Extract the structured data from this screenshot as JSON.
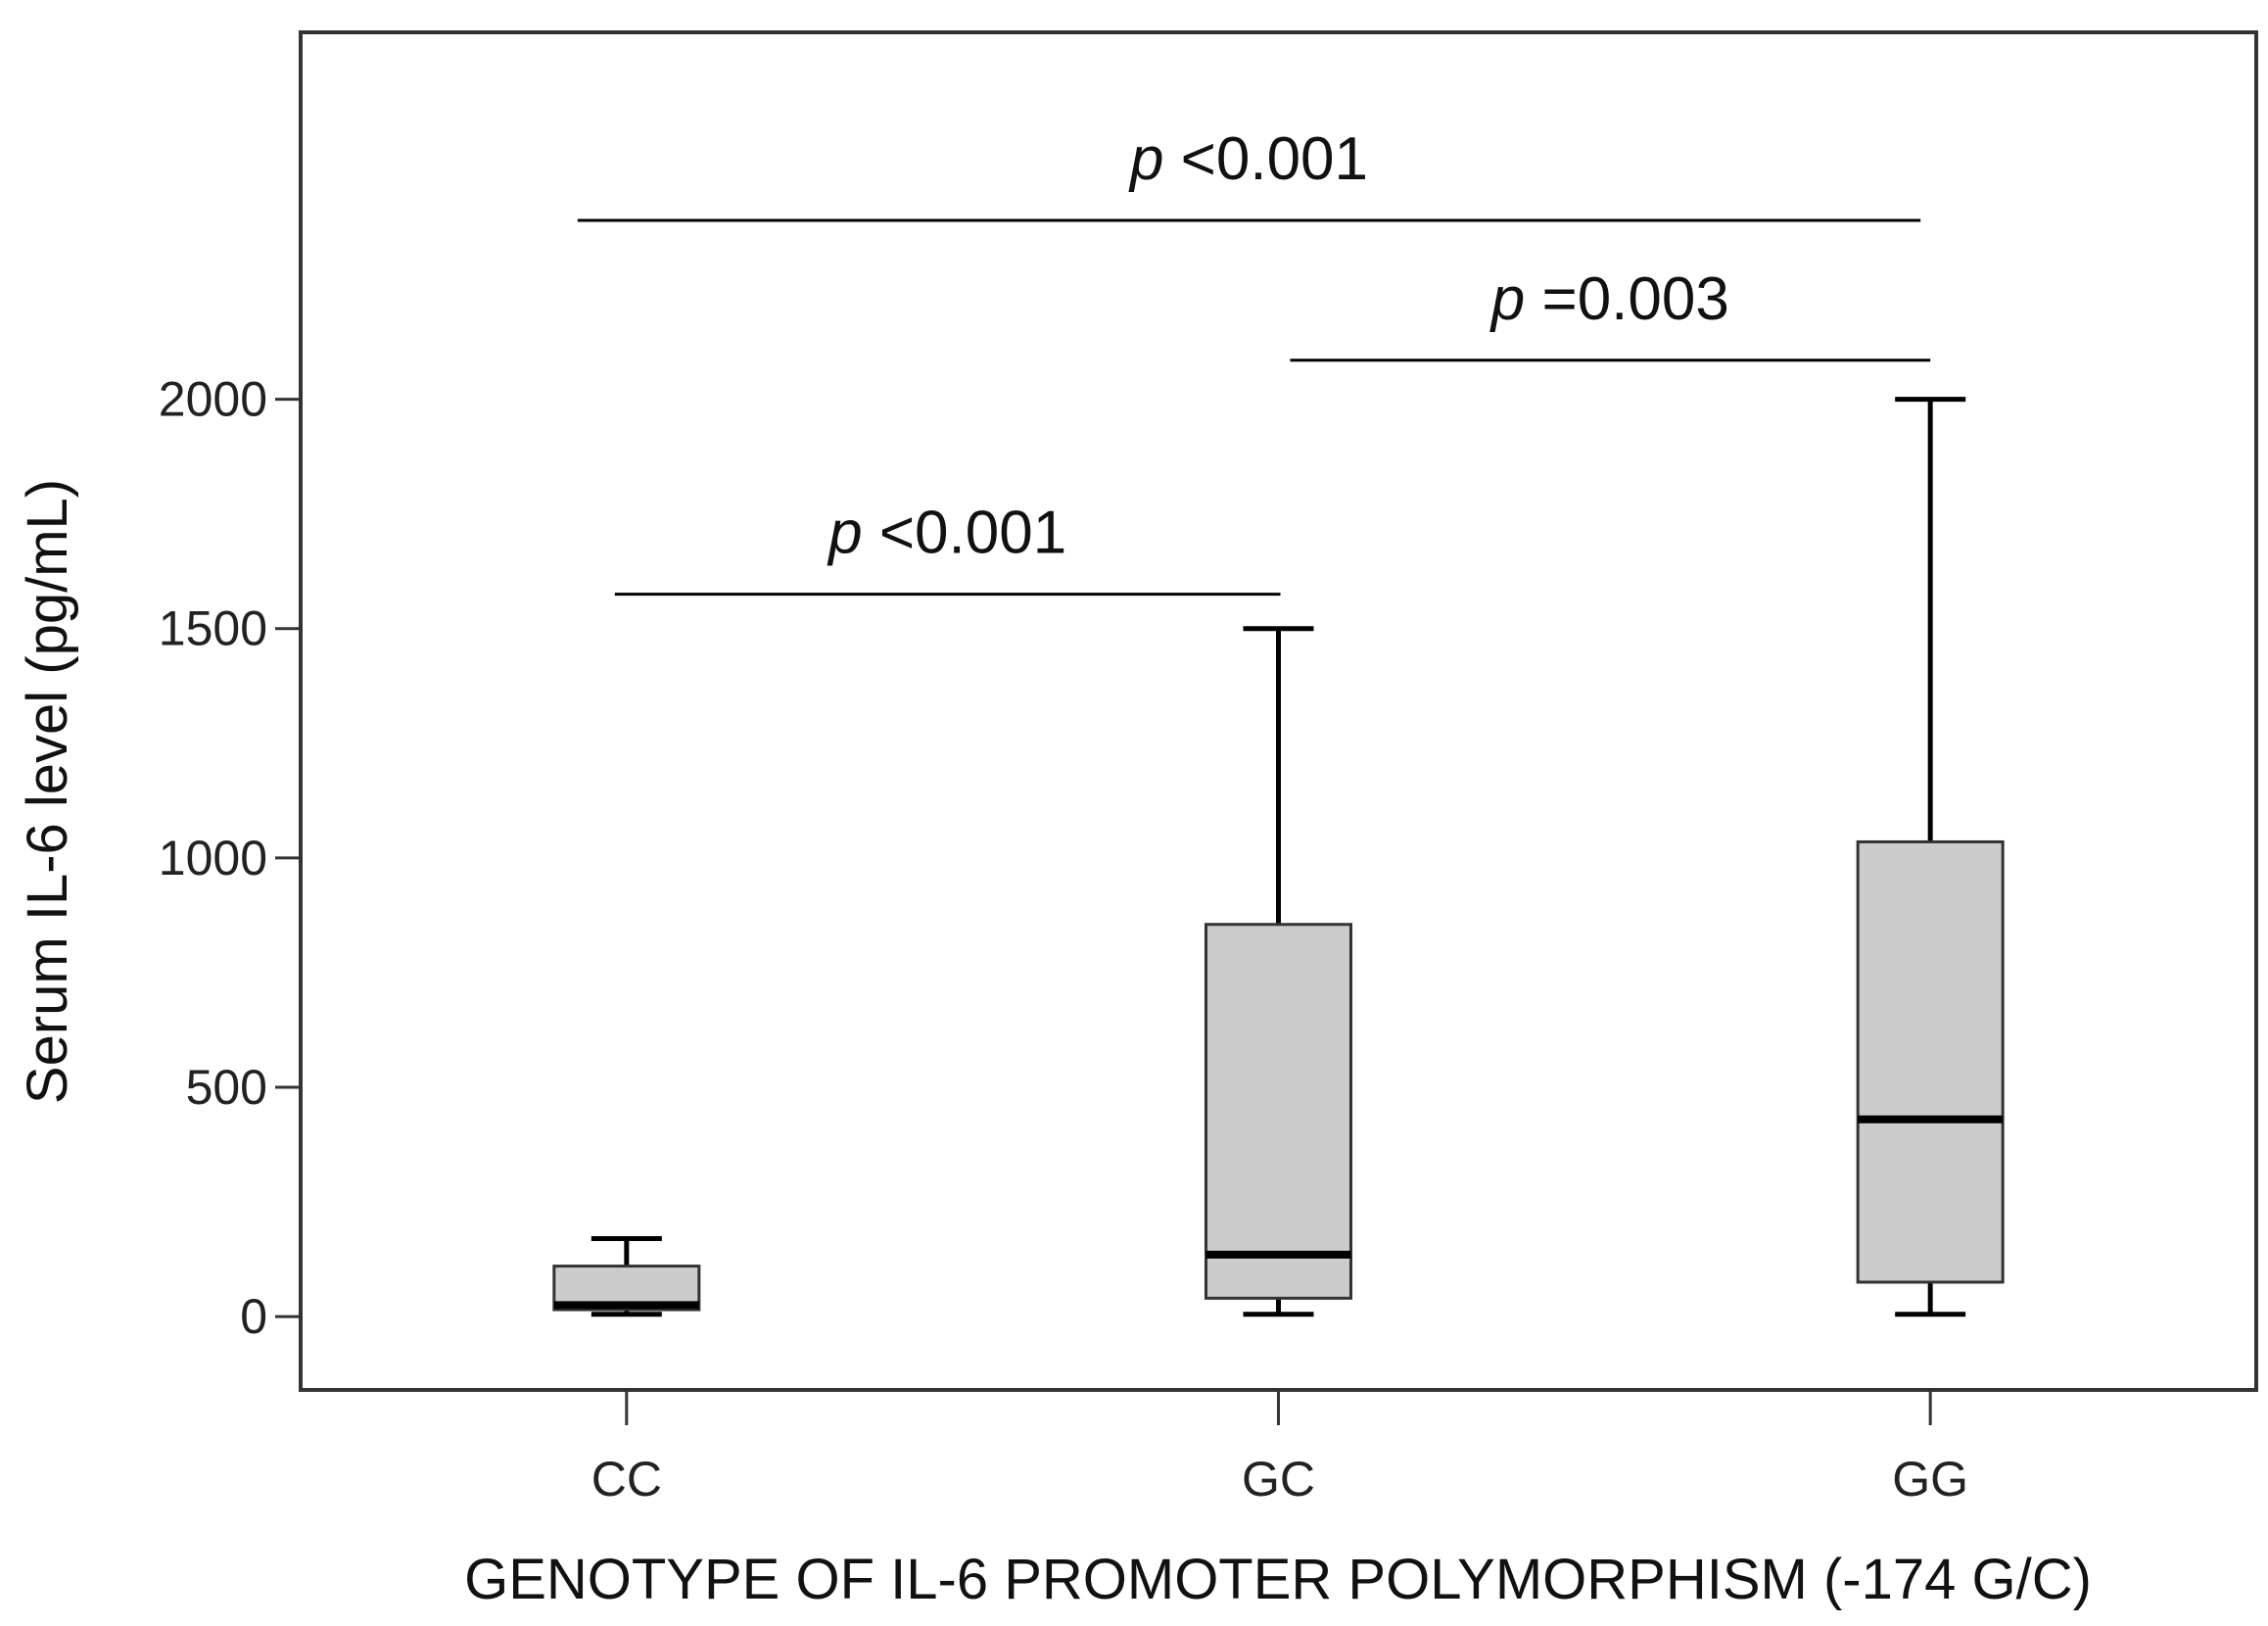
{
  "chart_data": {
    "type": "box",
    "xlabel": "GENOTYPE OF IL-6 PROMOTER POLYMORPHISM (-174 G/C)",
    "ylabel": "Serum IL-6 level (pg/mL)",
    "ylim": [
      -160,
      2800
    ],
    "yticks": [
      0,
      500,
      1000,
      1500,
      2000
    ],
    "categories": [
      "CC",
      "GC",
      "GG"
    ],
    "boxes": [
      {
        "category": "CC",
        "whisker_low": 5,
        "q1": 15,
        "median": 25,
        "q3": 110,
        "whisker_high": 170
      },
      {
        "category": "GC",
        "whisker_low": 5,
        "q1": 40,
        "median": 135,
        "q3": 855,
        "whisker_high": 1500
      },
      {
        "category": "GG",
        "whisker_low": 5,
        "q1": 75,
        "median": 430,
        "q3": 1035,
        "whisker_high": 2000
      }
    ],
    "significance": [
      {
        "from": "CC",
        "to": "GC",
        "y": 1575,
        "prefix": "p",
        "text": " <0.001"
      },
      {
        "from": "GC",
        "to": "GG",
        "y": 2085,
        "prefix": "p",
        "text": " =0.003"
      },
      {
        "from": "CC",
        "to": "GG",
        "y": 2390,
        "prefix": "p",
        "text": " <0.001"
      }
    ],
    "colors": {
      "box_fill": "#cccccc",
      "line": "#000000",
      "frame": "#333333"
    },
    "grid": false
  }
}
